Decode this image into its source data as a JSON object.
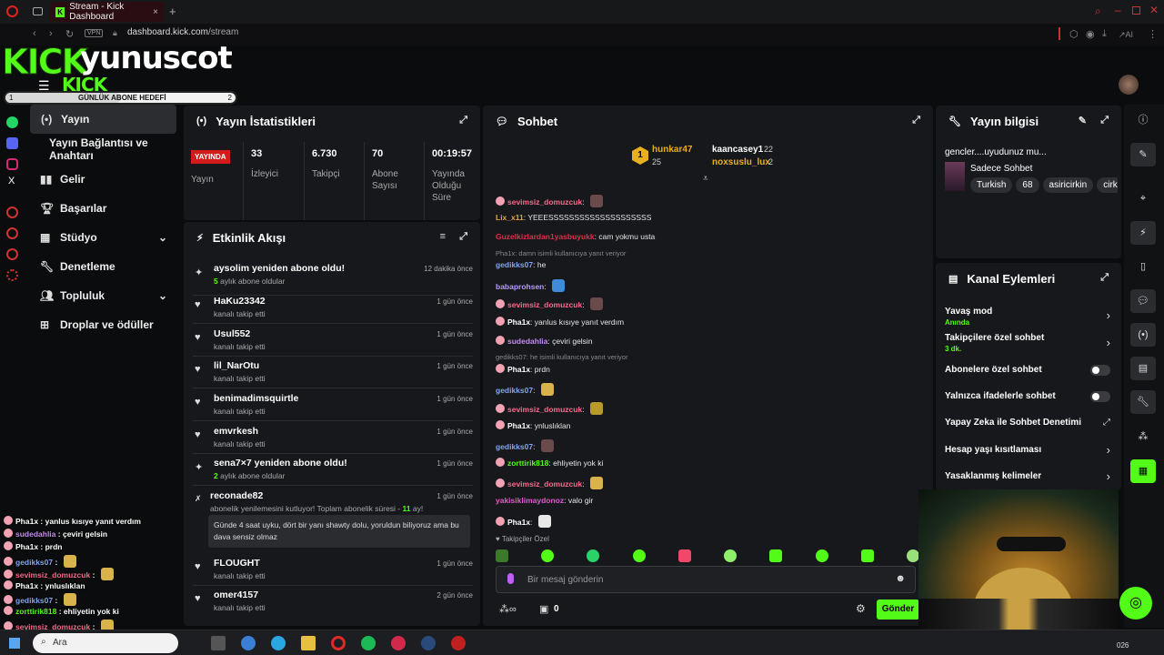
{
  "browser": {
    "tab_title": "Stream - Kick Dashboard",
    "url_host": "dashboard.kick.com",
    "url_path": "/stream",
    "vpn": "VPN",
    "ai_label": "AI"
  },
  "overlay": {
    "logo_text": "KICK",
    "username": "yunuscot",
    "logo_small": "KICK",
    "goal_label": "GÜNLÜK ABONE HEDEFİ",
    "goal_start": "1",
    "goal_end": "2",
    "goal_progress": 0.5
  },
  "nav": {
    "items": [
      {
        "label": "Yayın",
        "icon": "broadcast-icon",
        "active": true
      },
      {
        "label": "Yayın Bağlantısı ve Anahtarı",
        "icon": "",
        "active": false
      },
      {
        "label": "Gelir",
        "icon": "chart-icon",
        "active": false
      },
      {
        "label": "Başarılar",
        "icon": "trophy-icon",
        "active": false
      },
      {
        "label": "Stüdyo",
        "icon": "studio-icon",
        "active": false,
        "expandable": true
      },
      {
        "label": "Denetleme",
        "icon": "wrench-icon",
        "active": false
      },
      {
        "label": "Topluluk",
        "icon": "community-icon",
        "active": false,
        "expandable": true
      },
      {
        "label": "Droplar ve ödüller",
        "icon": "drops-icon",
        "active": false
      }
    ]
  },
  "stats": {
    "title": "Yayın İstatistikleri",
    "live_badge": "YAYINDA",
    "live_label": "Yayın",
    "cols": [
      {
        "value": "33",
        "label": "İzleyici"
      },
      {
        "value": "6.730",
        "label": "Takipçi"
      },
      {
        "value": "70",
        "label": "Abone Sayısı"
      },
      {
        "value": "00:19:57",
        "label": "Yayında Olduğu Süre"
      }
    ]
  },
  "activity": {
    "title": "Etkinlik Akışı",
    "items": [
      {
        "title": "aysolim yeniden abone oldu!",
        "sub_strong": "5",
        "sub": " aylık abone oldular",
        "time": "12 dakika önce",
        "icon": "sparkle-icon"
      },
      {
        "title": "HaKu23342",
        "sub_strong": "",
        "sub": "kanalı takip etti",
        "time": "1 gün önce",
        "icon": "heart-icon"
      },
      {
        "title": "Usul552",
        "sub_strong": "",
        "sub": "kanalı takip etti",
        "time": "1 gün önce",
        "icon": "heart-icon"
      },
      {
        "title": "lil_NarOtu",
        "sub_strong": "",
        "sub": "kanalı takip etti",
        "time": "1 gün önce",
        "icon": "heart-icon"
      },
      {
        "title": "benimadimsquirtle",
        "sub_strong": "",
        "sub": "kanalı takip etti",
        "time": "1 gün önce",
        "icon": "heart-icon"
      },
      {
        "title": "emvrkesh",
        "sub_strong": "",
        "sub": "kanalı takip etti",
        "time": "1 gün önce",
        "icon": "heart-icon"
      },
      {
        "title": "sena7×7 yeniden abone oldu!",
        "sub_strong": "2",
        "sub": " aylık abone oldular",
        "time": "1 gün önce",
        "icon": "sparkle-icon"
      },
      {
        "title": "reconade82",
        "sub_strong": "",
        "sub": "abonelik yenilemesini kutluyor! Toplam abonelik süresi - ",
        "sub_tail": "11",
        "sub_end": " ay!",
        "time": "1 gün önce",
        "icon": "star-icon",
        "quote": "Günde 4 saat uyku, dört bir yanı shawty dolu, yoruldun biliyoruz ama bu dava sensiz olmaz"
      },
      {
        "title": "FLOUGHT",
        "sub_strong": "",
        "sub": "kanalı takip etti",
        "time": "1 gün önce",
        "icon": "heart-icon"
      },
      {
        "title": "omer4157",
        "sub_strong": "",
        "sub": "kanalı takip etti",
        "time": "2 gün önce",
        "icon": "heart-icon"
      }
    ]
  },
  "chat": {
    "title": "Sohbet",
    "top_gifters": [
      {
        "name": "hunkar47",
        "count": "25",
        "rank": "1"
      },
      {
        "name": "kaancasey1",
        "count": "22"
      },
      {
        "name": "noxsuslu_lux",
        "count": "2"
      }
    ],
    "messages": [
      {
        "user": "sevimsiz_domuzcuk",
        "color": "#f36b8d",
        "text": "",
        "emote": "#6a4a4a",
        "pig": true
      },
      {
        "user": "Lix_x11",
        "color": "#e8a23a",
        "text": "YEEESSSSSSSSSSSSSSSSSSSS",
        "pig": false
      },
      {
        "user": "Guzelkizlardan1yasbuyukk",
        "color": "#d9304a",
        "text": "cam yokmu usta",
        "pig": false
      },
      {
        "reply": "Pha1x: damn isimli kullanıcıya yanıt veriyor"
      },
      {
        "user": "gedikks07",
        "color": "#7fa6f5",
        "text": "he",
        "pig": false
      },
      {
        "user": "babaprohsen",
        "color": "#b59bff",
        "text": "",
        "emote": "#3f8ad9",
        "pig": false
      },
      {
        "user": "sevimsiz_domuzcuk",
        "color": "#f36b8d",
        "text": "",
        "emote": "#6a4a4a",
        "pig": true
      },
      {
        "user": "Pha1x",
        "color": "#ffffff",
        "text": "yanlus kısıye yanıt verdım",
        "pig": true
      },
      {
        "user": "sudedahlia",
        "color": "#c68cf0",
        "text": "çeviri gelsin",
        "pig": true
      },
      {
        "reply": "gedikks07: he isimli kullanıcıya yanıt veriyor"
      },
      {
        "user": "Pha1x",
        "color": "#ffffff",
        "text": "prdn",
        "pig": true
      },
      {
        "user": "gedikks07",
        "color": "#7fa6f5",
        "text": "",
        "emote": "#d8b24a",
        "pig": false
      },
      {
        "user": "sevimsiz_domuzcuk",
        "color": "#f36b8d",
        "text": "",
        "emote": "#b89a2a",
        "pig": true
      },
      {
        "user": "Pha1x",
        "color": "#ffffff",
        "text": "ynluslıklan",
        "pig": true
      },
      {
        "user": "gedikks07",
        "color": "#7fa6f5",
        "text": "",
        "emote": "#6a4a4a",
        "pig": false
      },
      {
        "user": "zorttirik818",
        "color": "#53fc18",
        "text": "ehliyetin yok ki",
        "pig": true
      },
      {
        "user": "sevimsiz_domuzcuk",
        "color": "#f36b8d",
        "text": "",
        "emote": "#d8b24a",
        "pig": true
      },
      {
        "user": "yakisiklimaydonoz",
        "color": "#e05ad0",
        "text": "valo gir",
        "pig": false
      },
      {
        "user": "Pha1x",
        "color": "#ffffff",
        "text": "",
        "emote": "#e8e8e8",
        "pig": true
      }
    ],
    "followers_only": "Takipçiler Özel",
    "input_placeholder": "Bir mesaj gönderin",
    "points": "0",
    "send_label": "Gönder"
  },
  "stream_info": {
    "title": "Yayın bilgisi",
    "stream_title": "gencler....uyudunuz mu...",
    "category": "Sadece Sohbet",
    "tags": [
      "Turkish",
      "68",
      "asiricirkin",
      "cirk"
    ]
  },
  "channel_actions": {
    "title": "Kanal Eylemleri",
    "items": [
      {
        "label": "Yavaş mod",
        "sub": "Anında",
        "control": "chevron"
      },
      {
        "label": "Takipçilere özel sohbet",
        "sub": "3 dk.",
        "control": "chevron"
      },
      {
        "label": "Abonelere özel sohbet",
        "sub": "",
        "control": "toggle"
      },
      {
        "label": "Yalnızca ifadelerle sohbet",
        "sub": "",
        "control": "toggle"
      },
      {
        "label": "Yapay Zeka ile Sohbet Denetimi",
        "sub": "",
        "control": "external"
      },
      {
        "label": "Hesap yaşı kısıtlaması",
        "sub": "",
        "control": "chevron"
      },
      {
        "label": "Yasaklanmış kelimeler",
        "sub": "",
        "control": "chevron"
      }
    ]
  },
  "overlay_chat": [
    {
      "user": "Pha1x",
      "color": "#ffffff",
      "text": "yanlus kısıye yanıt verdım"
    },
    {
      "user": "sudedahlia",
      "color": "#c68cf0",
      "text": "çeviri gelsin"
    },
    {
      "user": "Pha1x",
      "color": "#ffffff",
      "text": "prdn"
    },
    {
      "user": "gedikks07",
      "color": "#7fa6f5",
      "text": ""
    },
    {
      "user": "sevimsiz_domuzcuk",
      "color": "#f36b8d",
      "text": ""
    },
    {
      "user": "Pha1x",
      "color": "#ffffff",
      "text": "ynluslıklan"
    },
    {
      "user": "gedikks07",
      "color": "#7fa6f5",
      "text": ""
    },
    {
      "user": "zorttirik818",
      "color": "#53fc18",
      "text": "ehliyetin yok ki"
    },
    {
      "user": "sevimsiz_domuzcuk",
      "color": "#f36b8d",
      "text": ""
    }
  ],
  "taskbar": {
    "search": "Ara",
    "clock": "026"
  },
  "colors": {
    "accent": "#53fc18",
    "panel": "#17181b",
    "live": "#d31b1b"
  }
}
